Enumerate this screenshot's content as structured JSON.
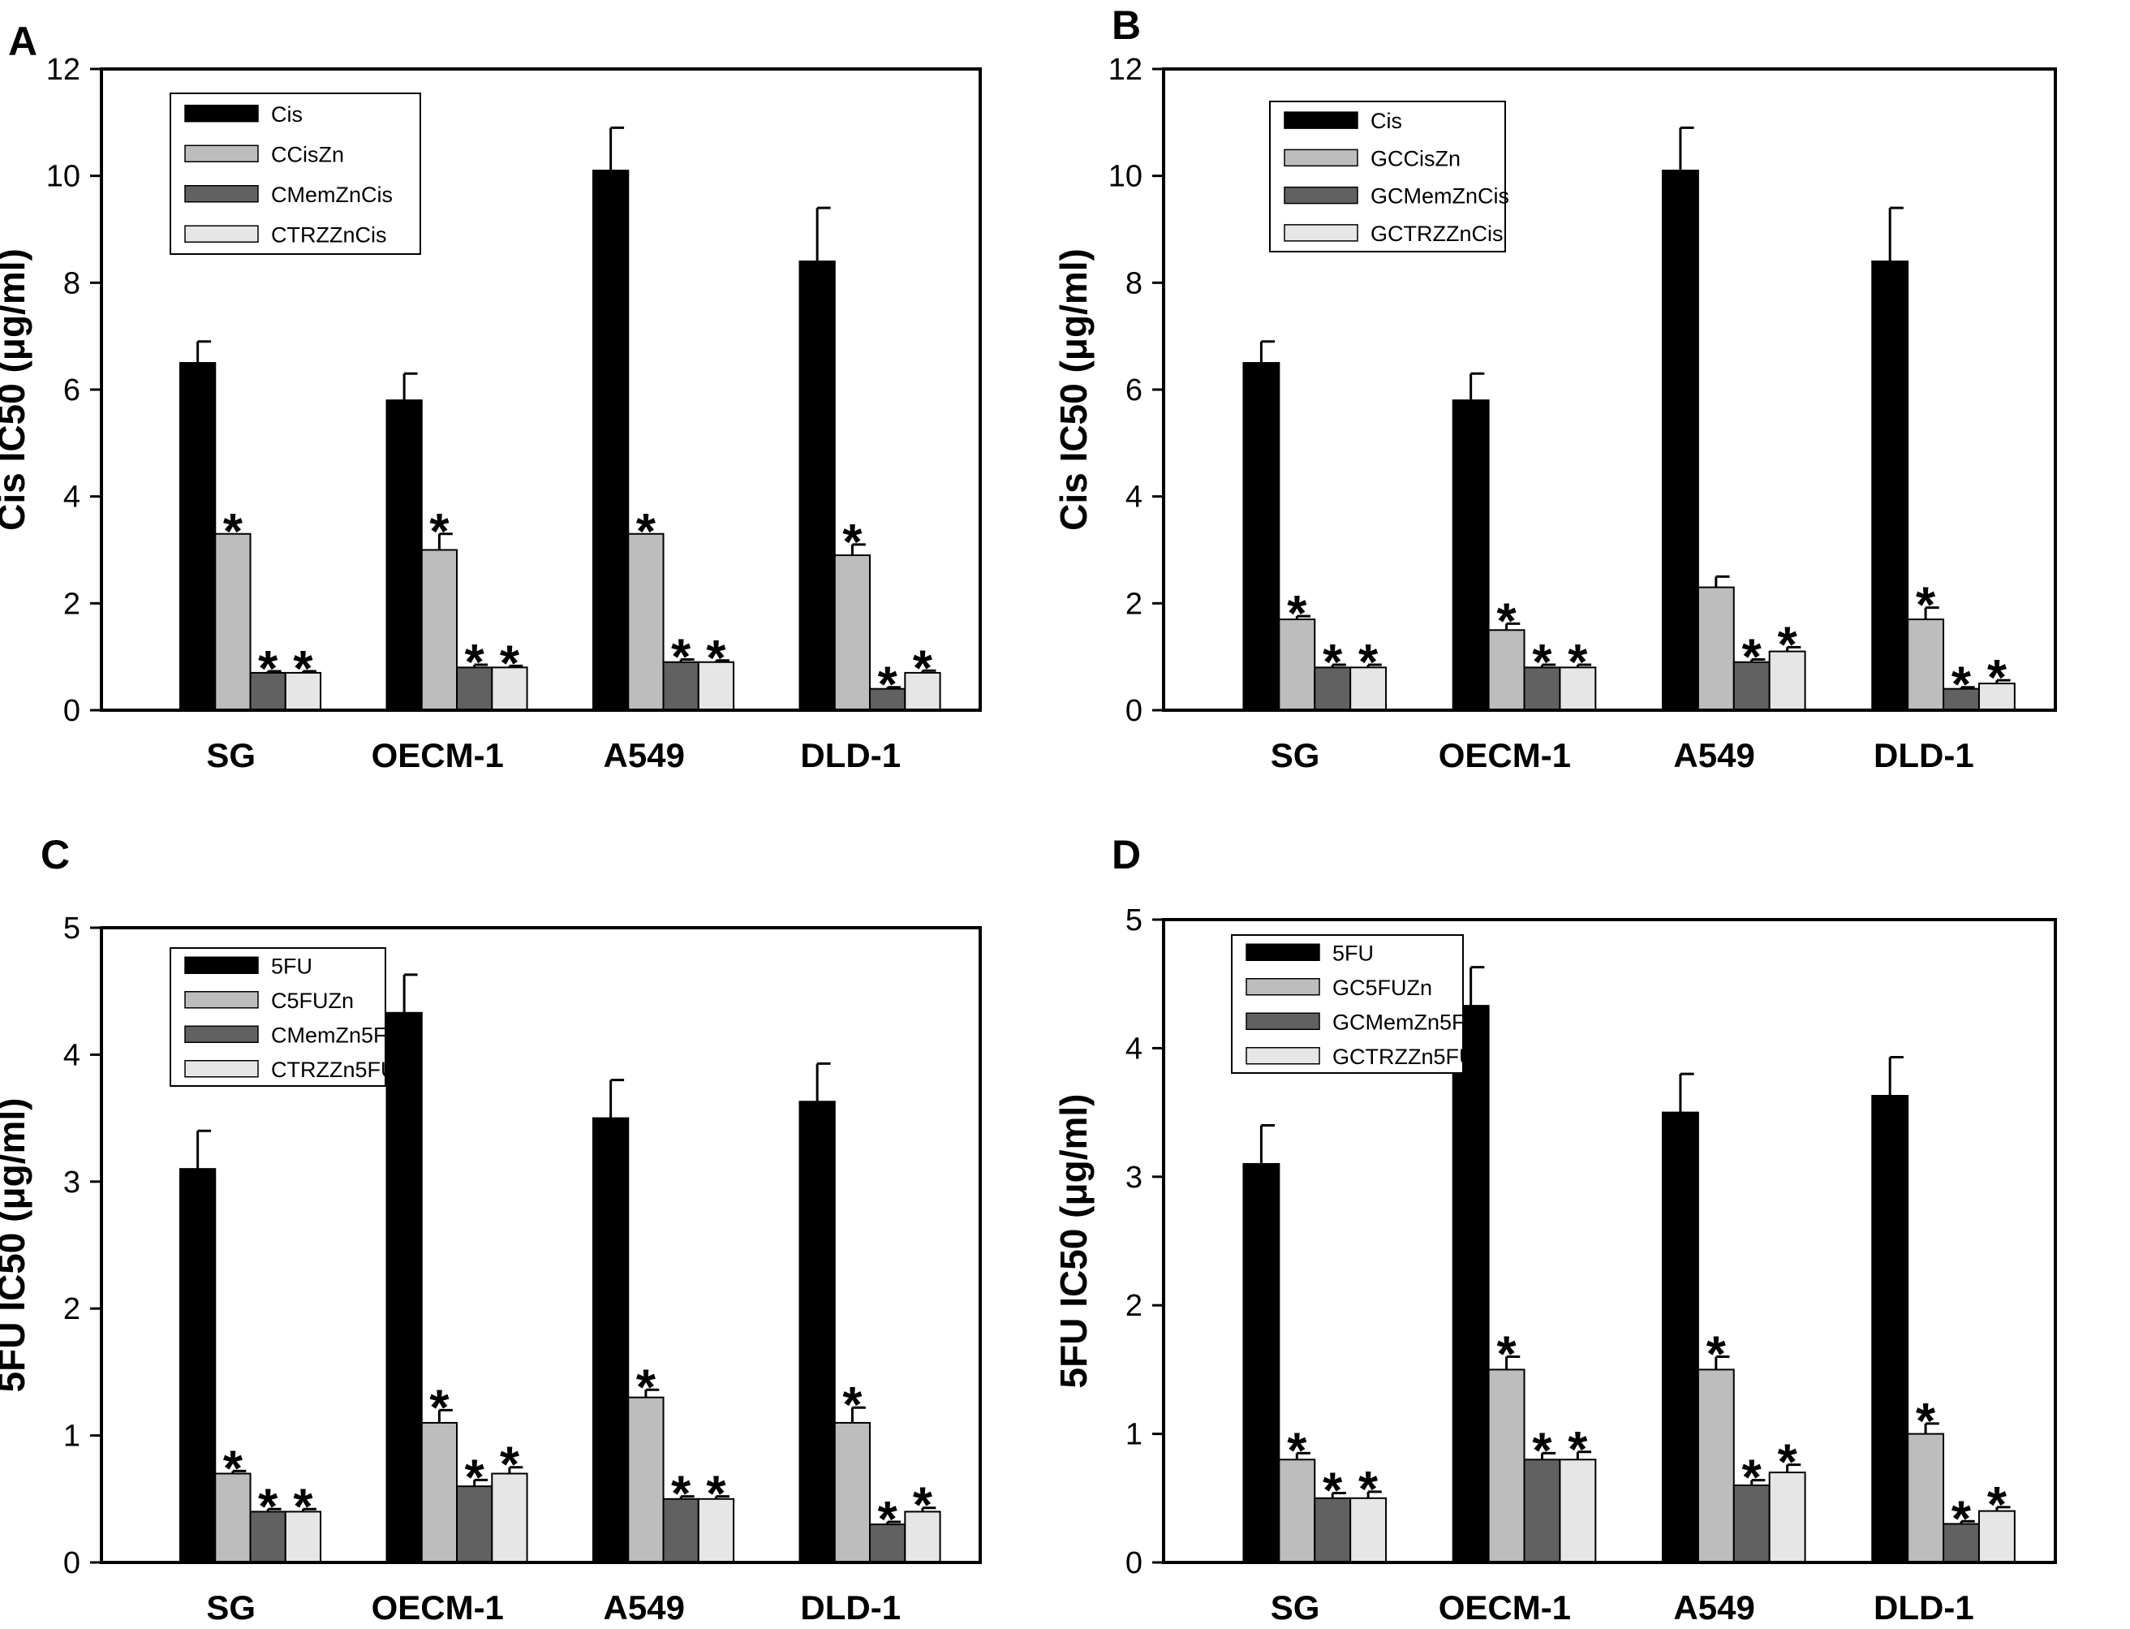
{
  "colors": {
    "series": [
      "#000000",
      "#bdbdbd",
      "#616161",
      "#e6e6e6"
    ]
  },
  "chart_data": [
    {
      "panel": "A",
      "type": "bar",
      "ylabel": "Cis IC50 (μg/ml)",
      "xlabel": "",
      "ylim": [
        0,
        12
      ],
      "yticks": [
        0,
        2,
        4,
        6,
        8,
        10,
        12
      ],
      "categories": [
        "SG",
        "OECM-1",
        "A549",
        "DLD-1"
      ],
      "legend_position": "top-left",
      "series": [
        {
          "name": "Cis",
          "values": [
            6.5,
            5.8,
            10.1,
            8.4
          ],
          "errors": [
            0.4,
            0.5,
            0.8,
            1.0
          ],
          "stars": [
            false,
            false,
            false,
            false
          ]
        },
        {
          "name": "CCisZn",
          "values": [
            3.3,
            3.0,
            3.3,
            2.9
          ],
          "errors": [
            0,
            0.3,
            0,
            0.2
          ],
          "stars": [
            true,
            true,
            true,
            true
          ]
        },
        {
          "name": "CMemZnCis",
          "values": [
            0.7,
            0.8,
            0.9,
            0.4
          ],
          "errors": [
            0.03,
            0.05,
            0.05,
            0.03
          ],
          "stars": [
            true,
            true,
            true,
            true
          ]
        },
        {
          "name": "CTRZZnCis",
          "values": [
            0.7,
            0.8,
            0.9,
            0.7
          ],
          "errors": [
            0.03,
            0.03,
            0.03,
            0.04
          ],
          "stars": [
            true,
            true,
            true,
            true
          ]
        }
      ]
    },
    {
      "panel": "B",
      "type": "bar",
      "ylabel": "Cis IC50 (μg/ml)",
      "xlabel": "",
      "ylim": [
        0,
        12
      ],
      "yticks": [
        0,
        2,
        4,
        6,
        8,
        10,
        12
      ],
      "categories": [
        "SG",
        "OECM-1",
        "A549",
        "DLD-1"
      ],
      "legend_position": "top-left",
      "series": [
        {
          "name": "Cis",
          "values": [
            6.5,
            5.8,
            10.1,
            8.4
          ],
          "errors": [
            0.4,
            0.5,
            0.8,
            1.0
          ],
          "stars": [
            false,
            false,
            false,
            false
          ]
        },
        {
          "name": "GCCisZn",
          "values": [
            1.7,
            1.5,
            2.3,
            1.7
          ],
          "errors": [
            0.06,
            0.12,
            0.2,
            0.22
          ],
          "stars": [
            true,
            true,
            false,
            true
          ]
        },
        {
          "name": "GCMemZnCis",
          "values": [
            0.8,
            0.8,
            0.9,
            0.4
          ],
          "errors": [
            0.05,
            0.05,
            0.05,
            0.03
          ],
          "stars": [
            true,
            true,
            true,
            true
          ]
        },
        {
          "name": "GCTRZZnCis",
          "values": [
            0.8,
            0.8,
            1.1,
            0.5
          ],
          "errors": [
            0.05,
            0.05,
            0.08,
            0.06
          ],
          "stars": [
            true,
            true,
            true,
            true
          ]
        }
      ]
    },
    {
      "panel": "C",
      "type": "bar",
      "ylabel": "5FU IC50 (μg/ml)",
      "xlabel": "",
      "ylim": [
        0,
        5
      ],
      "yticks": [
        0,
        1,
        2,
        3,
        4,
        5
      ],
      "categories": [
        "SG",
        "OECM-1",
        "A549",
        "DLD-1"
      ],
      "legend_position": "top-left",
      "series": [
        {
          "name": "5FU",
          "values": [
            3.1,
            4.33,
            3.5,
            3.63
          ],
          "errors": [
            0.3,
            0.3,
            0.3,
            0.3
          ],
          "stars": [
            false,
            false,
            false,
            false
          ]
        },
        {
          "name": "C5FUZn",
          "values": [
            0.7,
            1.1,
            1.3,
            1.1
          ],
          "errors": [
            0.02,
            0.1,
            0.06,
            0.12
          ],
          "stars": [
            true,
            true,
            true,
            true
          ]
        },
        {
          "name": "CMemZn5FU",
          "values": [
            0.4,
            0.6,
            0.5,
            0.3
          ],
          "errors": [
            0.02,
            0.05,
            0.02,
            0.02
          ],
          "stars": [
            true,
            true,
            true,
            true
          ]
        },
        {
          "name": "CTRZZn5FU",
          "values": [
            0.4,
            0.7,
            0.5,
            0.4
          ],
          "errors": [
            0.02,
            0.05,
            0.02,
            0.03
          ],
          "stars": [
            true,
            true,
            true,
            true
          ]
        }
      ]
    },
    {
      "panel": "D",
      "type": "bar",
      "ylabel": "5FU IC50 (μg/ml)",
      "xlabel": "",
      "ylim": [
        0,
        5
      ],
      "yticks": [
        0,
        1,
        2,
        3,
        4,
        5
      ],
      "categories": [
        "SG",
        "OECM-1",
        "A549",
        "DLD-1"
      ],
      "legend_position": "top-left",
      "series": [
        {
          "name": "5FU",
          "values": [
            3.1,
            4.33,
            3.5,
            3.63
          ],
          "errors": [
            0.3,
            0.3,
            0.3,
            0.3
          ],
          "stars": [
            false,
            false,
            false,
            false
          ]
        },
        {
          "name": "GC5FUZn",
          "values": [
            0.8,
            1.5,
            1.5,
            1.0
          ],
          "errors": [
            0.05,
            0.1,
            0.1,
            0.08
          ],
          "stars": [
            true,
            true,
            true,
            true
          ]
        },
        {
          "name": "GCMemZn5FU",
          "values": [
            0.5,
            0.8,
            0.6,
            0.3
          ],
          "errors": [
            0.04,
            0.05,
            0.04,
            0.02
          ],
          "stars": [
            true,
            true,
            true,
            true
          ]
        },
        {
          "name": "GCTRZZn5FU",
          "values": [
            0.5,
            0.8,
            0.7,
            0.4
          ],
          "errors": [
            0.05,
            0.06,
            0.06,
            0.03
          ],
          "stars": [
            true,
            true,
            true,
            true
          ]
        }
      ]
    }
  ]
}
